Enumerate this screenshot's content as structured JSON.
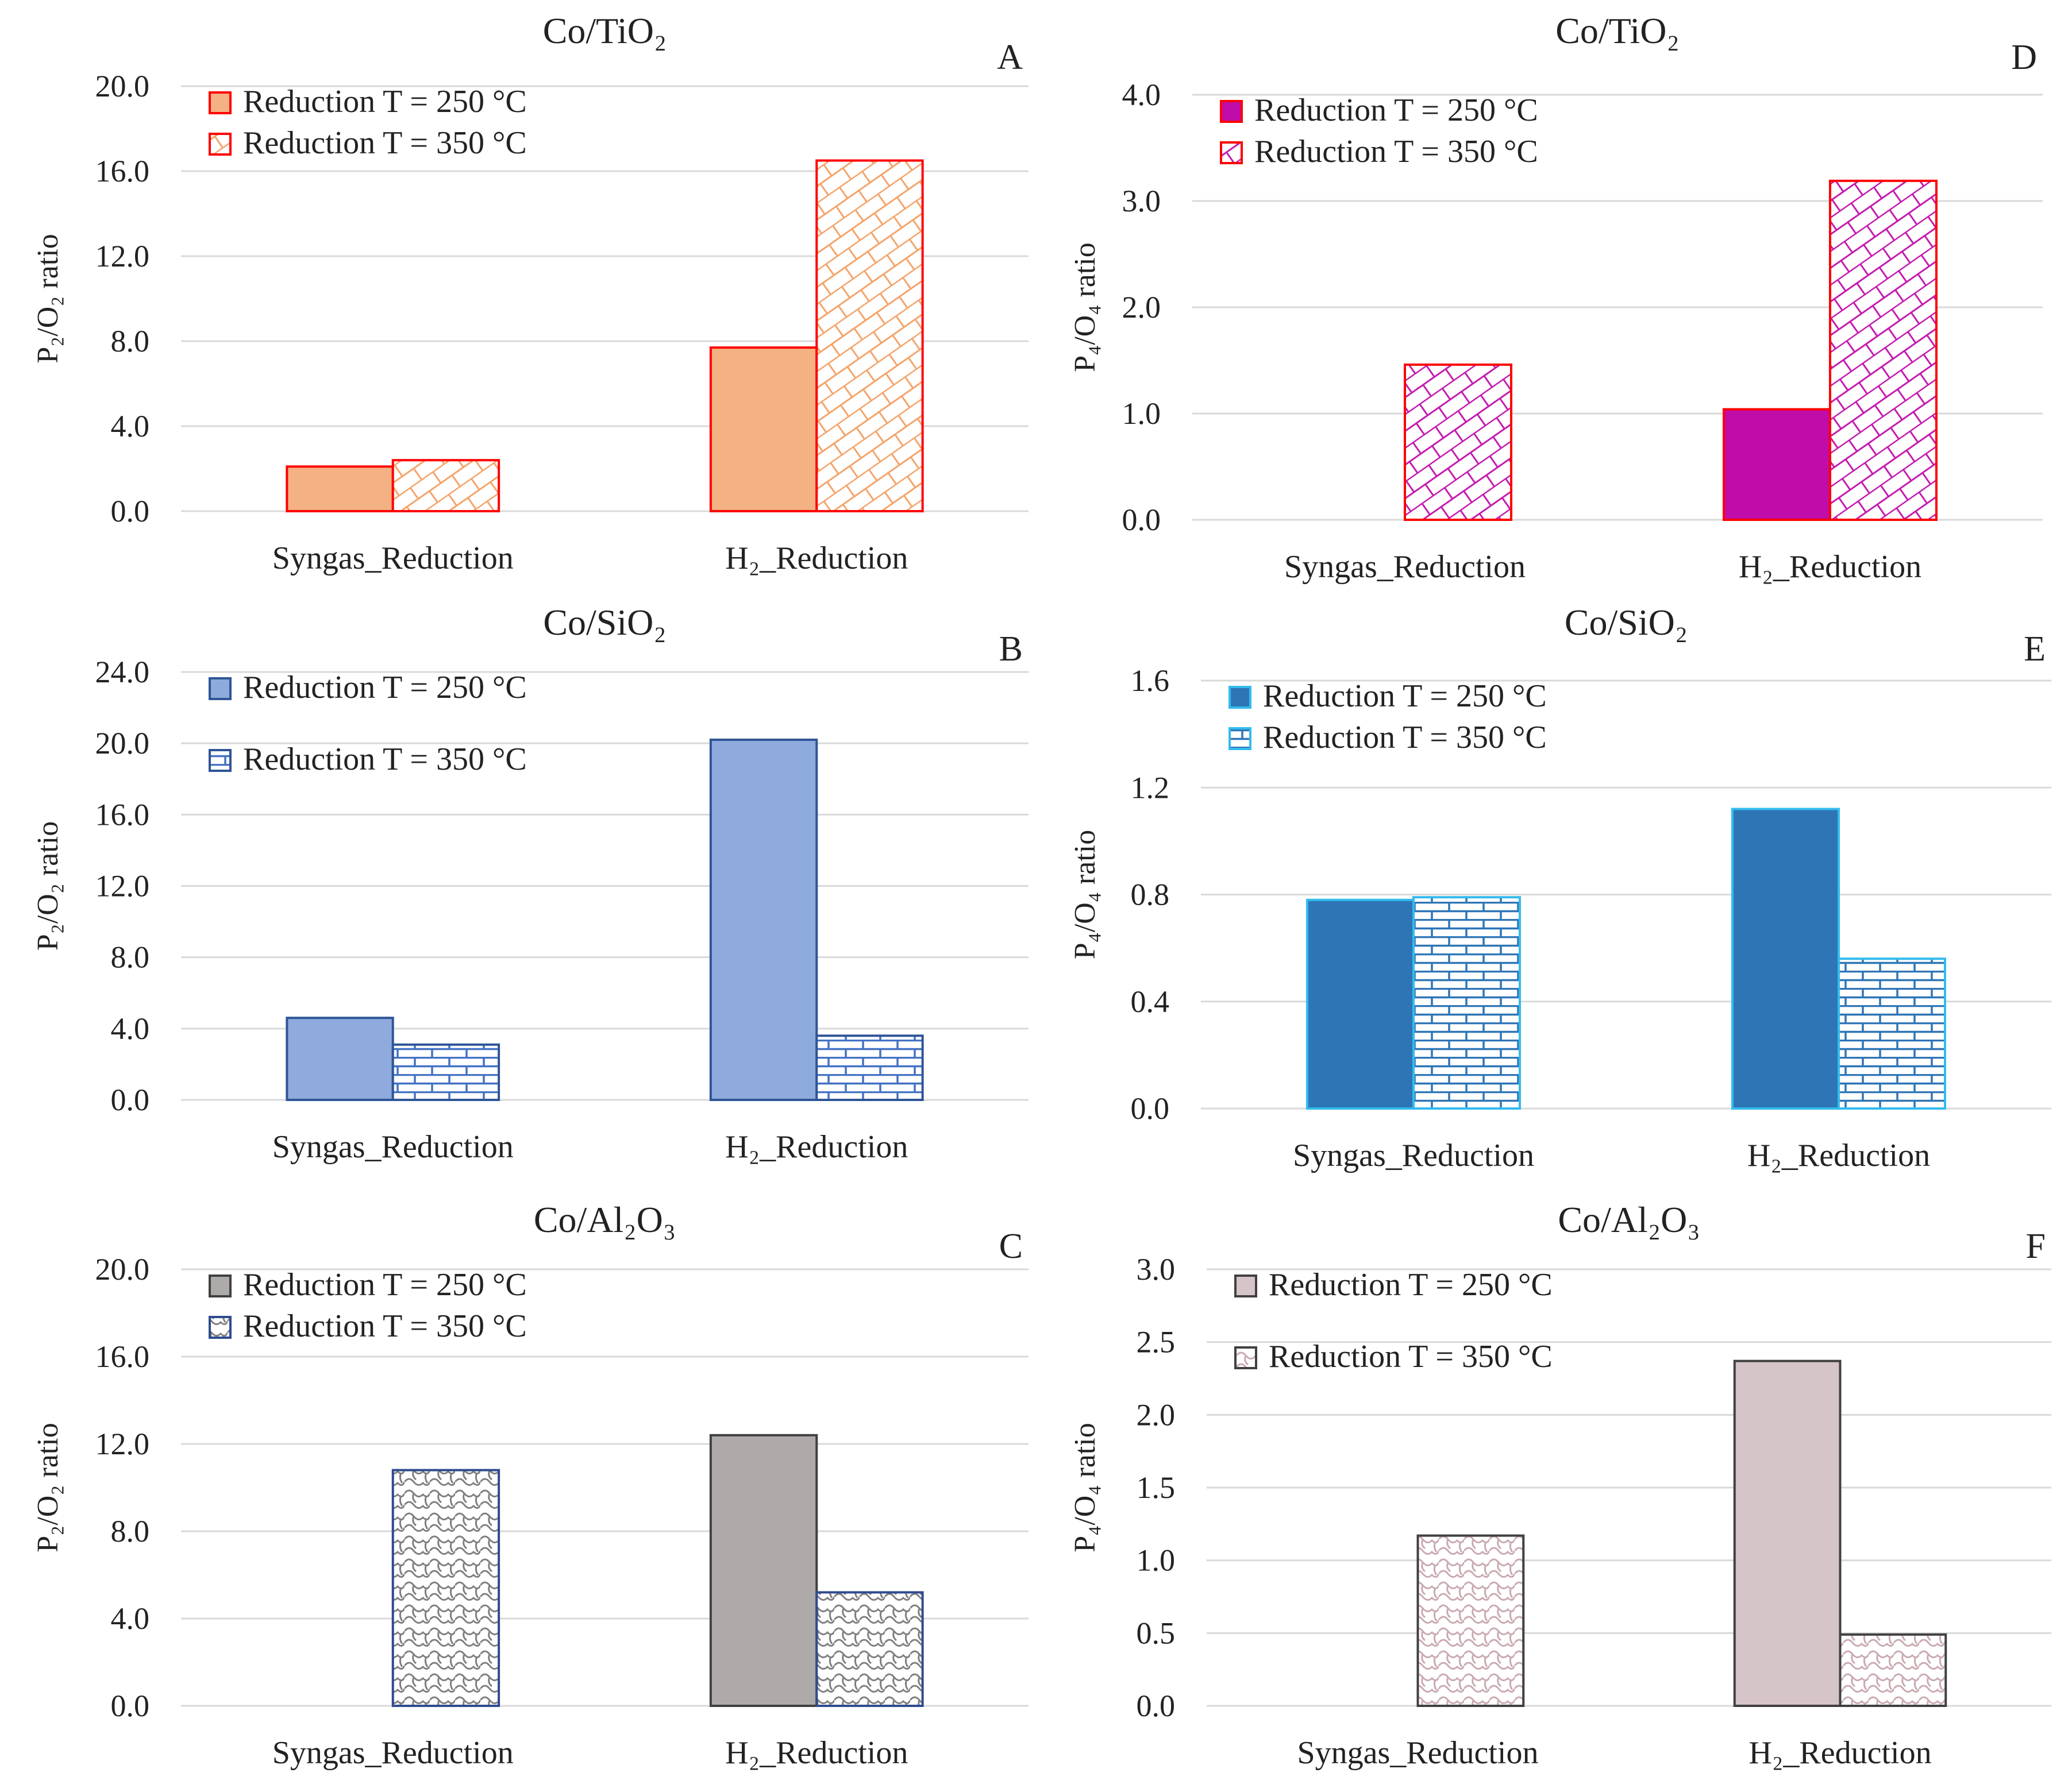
{
  "figure": {
    "categories": [
      "Syngas_Reduction",
      "H₂_Reduction"
    ],
    "legend_labels": [
      "Reduction T = 250 °C",
      "Reduction T = 350 °C"
    ]
  },
  "chart_data": [
    {
      "panel": "A",
      "type": "bar",
      "title": "Co/TiO₂",
      "ylabel": "P₂/O₂ ratio",
      "xlabel": "",
      "categories": [
        "Syngas_Reduction",
        "H₂_Reduction"
      ],
      "ylim": [
        0,
        20
      ],
      "yticks": [
        "0.0",
        "4.0",
        "8.0",
        "12.0",
        "16.0",
        "20.0"
      ],
      "grid": true,
      "legend": "top-left",
      "colors": {
        "fill": "#f4b183",
        "border": "#ff0000",
        "pattern": "#f4a46a"
      },
      "series": [
        {
          "name": "Reduction T = 250 °C",
          "pattern": "solid",
          "values": [
            2.1,
            7.7
          ]
        },
        {
          "name": "Reduction T = 350 °C",
          "pattern": "diagonal-brick",
          "values": [
            2.4,
            16.5
          ]
        }
      ]
    },
    {
      "panel": "B",
      "type": "bar",
      "title": "Co/SiO₂",
      "ylabel": "P₂/O₂ ratio",
      "xlabel": "",
      "categories": [
        "Syngas_Reduction",
        "H₂_Reduction"
      ],
      "ylim": [
        0,
        24
      ],
      "yticks": [
        "0.0",
        "4.0",
        "8.0",
        "12.0",
        "16.0",
        "20.0",
        "24.0"
      ],
      "grid": true,
      "legend": "top-left",
      "colors": {
        "fill": "#8faadc",
        "border": "#2f5597",
        "pattern": "#4472c4"
      },
      "series": [
        {
          "name": "Reduction T = 250 °C",
          "pattern": "solid",
          "values": [
            4.6,
            20.2
          ]
        },
        {
          "name": "Reduction T = 350 °C",
          "pattern": "horizontal-brick",
          "values": [
            3.1,
            3.6
          ]
        }
      ]
    },
    {
      "panel": "C",
      "type": "bar",
      "title": "Co/Al₂O₃",
      "ylabel": "P₂/O₂ ratio",
      "xlabel": "",
      "categories": [
        "Syngas_Reduction",
        "H₂_Reduction"
      ],
      "ylim": [
        0,
        20
      ],
      "yticks": [
        "0.0",
        "4.0",
        "8.0",
        "12.0",
        "16.0",
        "20.0"
      ],
      "grid": true,
      "legend": "top-left",
      "colors": {
        "fill": "#aeaaaa",
        "border": "#404040",
        "border350": "#2f4b8f",
        "pattern": "#7f7f7f"
      },
      "series": [
        {
          "name": "Reduction T = 250 °C",
          "pattern": "solid",
          "values": [
            0,
            12.4
          ]
        },
        {
          "name": "Reduction T = 350 °C",
          "pattern": "shingle",
          "values": [
            10.8,
            5.2
          ]
        }
      ]
    },
    {
      "panel": "D",
      "type": "bar",
      "title": "Co/TiO₂",
      "ylabel": "P₄/O₄ ratio",
      "xlabel": "",
      "categories": [
        "Syngas_Reduction",
        "H₂_Reduction"
      ],
      "ylim": [
        0,
        4
      ],
      "yticks": [
        "0.0",
        "1.0",
        "2.0",
        "3.0",
        "4.0"
      ],
      "grid": true,
      "legend": "top-left",
      "colors": {
        "fill": "#c00ca8",
        "border": "#ff0000",
        "pattern": "#c41bb0"
      },
      "series": [
        {
          "name": "Reduction T = 250 °C",
          "pattern": "solid",
          "values": [
            0,
            1.04
          ]
        },
        {
          "name": "Reduction T = 350 °C",
          "pattern": "diagonal-brick",
          "values": [
            1.46,
            3.19
          ]
        }
      ]
    },
    {
      "panel": "E",
      "type": "bar",
      "title": "Co/SiO₂",
      "ylabel": "P₄/O₄ ratio",
      "xlabel": "",
      "categories": [
        "Syngas_Reduction",
        "H₂_Reduction"
      ],
      "ylim": [
        0,
        1.6
      ],
      "yticks": [
        "0.0",
        "0.4",
        "0.8",
        "1.2",
        "1.6"
      ],
      "grid": true,
      "legend": "top-left",
      "colors": {
        "fill": "#2e75b6",
        "border": "#33bbee",
        "pattern": "#2e75b6"
      },
      "series": [
        {
          "name": "Reduction T = 250 °C",
          "pattern": "solid",
          "values": [
            0.78,
            1.12
          ]
        },
        {
          "name": "Reduction T = 350 °C",
          "pattern": "horizontal-brick",
          "values": [
            0.79,
            0.56
          ]
        }
      ]
    },
    {
      "panel": "F",
      "type": "bar",
      "title": "Co/Al₂O₃",
      "ylabel": "P₄/O₄ ratio",
      "xlabel": "",
      "categories": [
        "Syngas_Reduction",
        "H₂_Reduction"
      ],
      "ylim": [
        0,
        3
      ],
      "yticks": [
        "0.0",
        "0.5",
        "1.0",
        "1.5",
        "2.0",
        "2.5",
        "3.0"
      ],
      "grid": true,
      "legend": "top-left",
      "colors": {
        "fill": "#d5c4c8",
        "border": "#404040",
        "pattern": "#c9aab0"
      },
      "series": [
        {
          "name": "Reduction T = 250 °C",
          "pattern": "solid",
          "values": [
            0,
            2.37
          ]
        },
        {
          "name": "Reduction T = 350 °C",
          "pattern": "shingle",
          "values": [
            1.17,
            0.49
          ]
        }
      ]
    }
  ]
}
